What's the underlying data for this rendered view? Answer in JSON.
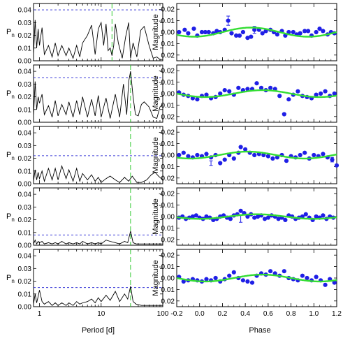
{
  "chart_data": [
    {
      "type": "line",
      "panel": "periodogram",
      "xlabel": "Period [d]",
      "ylabel": "P",
      "ylabel_sub": "n",
      "xscale": "log",
      "xlim": [
        0.8,
        100
      ],
      "ylim": [
        0,
        0.045
      ],
      "xticks": [
        "1",
        "10",
        "100"
      ],
      "yticks": [
        "0.00",
        "0.01",
        "0.02",
        "0.03",
        "0.04"
      ],
      "rows": [
        {
          "threshold": 0.04,
          "peak_period": 15,
          "series": [
            {
              "x": [
                0.8,
                0.85,
                0.9,
                0.95,
                1,
                1.1,
                1.2,
                1.4,
                1.6,
                1.8,
                2,
                2.3,
                2.7,
                3,
                3.5,
                4,
                4.5,
                5,
                6,
                7,
                8,
                9,
                10,
                11,
                12,
                13,
                14,
                15,
                16,
                17,
                19,
                22,
                25,
                28,
                30,
                33,
                38,
                44,
                50,
                60,
                70,
                80,
                90,
                100
              ],
              "y": [
                0.005,
                0.032,
                0.01,
                0.025,
                0.012,
                0.026,
                0.005,
                0.012,
                0.003,
                0.014,
                0.004,
                0.012,
                0.004,
                0.01,
                0.002,
                0.012,
                0.003,
                0.014,
                0.02,
                0.028,
                0.005,
                0.025,
                0.03,
                0.012,
                0.029,
                0.008,
                0.01,
                0.004,
                0.012,
                0.029,
                0.014,
                0.002,
                0.019,
                0.03,
                0.002,
                0.014,
                0.003,
                0.024,
                0.027,
                0.012,
                0.002,
                0.003,
                0.001,
                0.001
              ]
            }
          ]
        },
        {
          "threshold": 0.035,
          "peak_period": 30,
          "series": [
            {
              "x": [
                0.8,
                0.85,
                0.9,
                0.95,
                1,
                1.1,
                1.2,
                1.4,
                1.6,
                1.8,
                2,
                2.3,
                2.7,
                3,
                3.5,
                4,
                4.5,
                5,
                6,
                7,
                8,
                9,
                10,
                12,
                14,
                17,
                20,
                23,
                26,
                28,
                30,
                33,
                36,
                40,
                45,
                50,
                60,
                70,
                80,
                90,
                100
              ],
              "y": [
                0.005,
                0.032,
                0.01,
                0.02,
                0.015,
                0.022,
                0.006,
                0.013,
                0.004,
                0.017,
                0.005,
                0.014,
                0.006,
                0.016,
                0.004,
                0.017,
                0.006,
                0.02,
                0.004,
                0.018,
                0.005,
                0.021,
                0.004,
                0.019,
                0.003,
                0.022,
                0.004,
                0.03,
                0.006,
                0.032,
                0.04,
                0.02,
                0.006,
                0.005,
                0.014,
                0.016,
                0.012,
                0.004,
                0.003,
                0.012,
                0.014
              ]
            }
          ]
        },
        {
          "threshold": 0.022,
          "peak_period": 30,
          "series": [
            {
              "x": [
                0.8,
                0.85,
                0.9,
                0.95,
                1,
                1.1,
                1.2,
                1.4,
                1.6,
                1.8,
                2,
                2.3,
                2.7,
                3,
                3.5,
                4,
                4.5,
                5,
                6,
                7,
                8,
                9,
                10,
                12,
                14,
                17,
                20,
                24,
                28,
                32,
                38,
                45,
                55,
                65,
                75,
                85,
                100
              ],
              "y": [
                0.002,
                0.011,
                0.003,
                0.009,
                0.004,
                0.01,
                0.002,
                0.012,
                0.003,
                0.012,
                0.003,
                0.014,
                0.004,
                0.011,
                0.002,
                0.012,
                0.002,
                0.008,
                0.003,
                0.007,
                0.002,
                0.005,
                0.001,
                0.004,
                0.006,
                0.003,
                0.001,
                0.005,
                0.002,
                0.006,
                0.001,
                0.001,
                0.003,
                0.007,
                0.009,
                0.006,
                0.003
              ]
            }
          ]
        },
        {
          "threshold": 0.008,
          "peak_period": 30,
          "series": [
            {
              "x": [
                0.8,
                0.85,
                0.9,
                0.95,
                1,
                1.1,
                1.2,
                1.4,
                1.6,
                1.8,
                2,
                2.3,
                2.7,
                3,
                3.5,
                4,
                4.5,
                5,
                6,
                7,
                8,
                9,
                10,
                12,
                14,
                17,
                20,
                24,
                27,
                30,
                33,
                37,
                45,
                55,
                70,
                85,
                100
              ],
              "y": [
                0.001,
                0.004,
                0.001,
                0.003,
                0.002,
                0.003,
                0.001,
                0.002,
                0.001,
                0.002,
                0.001,
                0.003,
                0.001,
                0.002,
                0.001,
                0.002,
                0.001,
                0.003,
                0.001,
                0.002,
                0.001,
                0.002,
                0.001,
                0.004,
                0.003,
                0.002,
                0.001,
                0.003,
                0.002,
                0.011,
                0.002,
                0.001,
                0.001,
                0.001,
                0.001,
                0.001,
                0.001
              ]
            }
          ]
        },
        {
          "threshold": 0.015,
          "peak_period": 30,
          "series": [
            {
              "x": [
                0.8,
                0.85,
                0.9,
                0.95,
                1,
                1.1,
                1.2,
                1.4,
                1.6,
                1.8,
                2,
                2.3,
                2.7,
                3,
                3.5,
                4,
                4.5,
                5,
                6,
                7,
                8,
                9,
                10,
                12,
                14,
                17,
                20,
                24,
                27,
                30,
                33,
                37,
                45,
                55,
                70,
                85,
                100
              ],
              "y": [
                0.002,
                0.01,
                0.003,
                0.008,
                0.013,
                0.004,
                0.002,
                0.004,
                0.001,
                0.003,
                0.001,
                0.003,
                0.001,
                0.003,
                0.001,
                0.004,
                0.002,
                0.003,
                0.004,
                0.006,
                0.003,
                0.007,
                0.004,
                0.009,
                0.005,
                0.012,
                0.004,
                0.01,
                0.006,
                0.016,
                0.004,
                0.002,
                0.001,
                0.001,
                0.001,
                0.001,
                0.001
              ]
            }
          ]
        }
      ]
    },
    {
      "type": "scatter",
      "panel": "phase",
      "xlabel": "Phase",
      "ylabel": "Magnitude",
      "xlim": [
        -0.2,
        1.2
      ],
      "ylim": [
        0.025,
        -0.025
      ],
      "xticks": [
        "-0.2",
        "0.0",
        "0.2",
        "0.4",
        "0.6",
        "0.8",
        "1.0",
        "1.2"
      ],
      "yticks": [
        "-0.02",
        "-0.01",
        "0.00",
        "0.01",
        "0.02"
      ],
      "rows": [
        {
          "amp": 0.004,
          "t0": 0.45,
          "points": {
            "x": [
              -0.18,
              -0.13,
              -0.1,
              -0.05,
              -0.02,
              0.02,
              0.05,
              0.08,
              0.12,
              0.15,
              0.18,
              0.22,
              0.25,
              0.28,
              0.32,
              0.35,
              0.38,
              0.42,
              0.45,
              0.48,
              0.52,
              0.55,
              0.58,
              0.62,
              0.65,
              0.68,
              0.72,
              0.75,
              0.78,
              0.82,
              0.85,
              0.88,
              0.92,
              0.95,
              0.98,
              1.02,
              1.05,
              1.08,
              1.12,
              1.15,
              1.18
            ],
            "y": [
              0.0,
              -0.002,
              0.001,
              -0.003,
              0.003,
              0.0,
              0.0,
              0.0,
              0.001,
              -0.001,
              0.0,
              -0.002,
              -0.01,
              0.001,
              0.003,
              0.003,
              0.0,
              0.005,
              0.004,
              -0.002,
              -0.002,
              0.001,
              -0.001,
              -0.002,
              0.0,
              0.002,
              -0.001,
              0.003,
              0.0,
              0.0,
              0.002,
              0.001,
              -0.001,
              -0.001,
              0.003,
              0.0,
              -0.003,
              -0.001,
              0.002,
              0.0,
              0.001
            ]
          },
          "error_bars": [
            {
              "x": 0.25,
              "y": -0.01,
              "err": 0.004
            },
            {
              "x": 0.48,
              "y": -0.002,
              "err": 0.003
            }
          ]
        },
        {
          "amp": 0.003,
          "t0": 0.55,
          "points": {
            "x": [
              -0.18,
              -0.14,
              -0.1,
              -0.06,
              -0.02,
              0.02,
              0.06,
              0.1,
              0.14,
              0.18,
              0.22,
              0.26,
              0.3,
              0.34,
              0.38,
              0.42,
              0.46,
              0.5,
              0.54,
              0.58,
              0.62,
              0.66,
              0.7,
              0.74,
              0.78,
              0.82,
              0.86,
              0.9,
              0.94,
              0.98,
              1.02,
              1.06,
              1.1,
              1.14,
              1.18
            ],
            "y": [
              -0.001,
              0.001,
              0.002,
              0.004,
              0.005,
              0.002,
              0.001,
              0.004,
              0.003,
              0.0,
              -0.003,
              -0.002,
              0.001,
              -0.005,
              -0.003,
              -0.004,
              -0.004,
              -0.009,
              -0.005,
              -0.003,
              -0.005,
              -0.004,
              0.002,
              0.018,
              0.005,
              0.001,
              -0.002,
              0.002,
              0.003,
              0.004,
              0.001,
              0.0,
              -0.002,
              0.002,
              0.0
            ]
          }
        },
        {
          "amp": 0.003,
          "t0": 0.42,
          "points": {
            "x": [
              -0.18,
              -0.14,
              -0.1,
              -0.06,
              -0.02,
              0.02,
              0.06,
              0.1,
              0.14,
              0.18,
              0.22,
              0.26,
              0.3,
              0.34,
              0.36,
              0.4,
              0.44,
              0.48,
              0.52,
              0.56,
              0.6,
              0.64,
              0.68,
              0.72,
              0.76,
              0.8,
              0.84,
              0.88,
              0.92,
              0.96,
              1.0,
              1.04,
              1.08,
              1.12,
              1.16,
              1.2
            ],
            "y": [
              0.0,
              -0.002,
              0.001,
              0.002,
              0.0,
              0.001,
              -0.001,
              0.002,
              0.0,
              0.007,
              0.004,
              0.0,
              0.003,
              -0.002,
              -0.007,
              -0.005,
              -0.002,
              0.0,
              -0.001,
              0.0,
              0.001,
              0.003,
              0.002,
              0.0,
              0.005,
              0.001,
              0.002,
              0.0,
              -0.002,
              0.003,
              0.0,
              0.001,
              -0.001,
              0.002,
              0.004,
              0.009
            ]
          },
          "error_bars": [
            {
              "x": 0.1,
              "y": 0.007,
              "err": 0.002
            },
            {
              "x": 1.16,
              "y": 0.004,
              "err": 0.002
            }
          ]
        },
        {
          "amp": 0.002,
          "t0": 0.5,
          "points": {
            "x": [
              -0.18,
              -0.15,
              -0.12,
              -0.09,
              -0.06,
              -0.03,
              0.0,
              0.03,
              0.06,
              0.09,
              0.12,
              0.15,
              0.18,
              0.21,
              0.24,
              0.27,
              0.3,
              0.33,
              0.36,
              0.39,
              0.42,
              0.45,
              0.48,
              0.51,
              0.54,
              0.57,
              0.6,
              0.63,
              0.66,
              0.69,
              0.72,
              0.75,
              0.78,
              0.81,
              0.84,
              0.87,
              0.9,
              0.93,
              0.96,
              0.99,
              1.02,
              1.05,
              1.08,
              1.11,
              1.14,
              1.17
            ],
            "y": [
              0.001,
              0.0,
              0.002,
              0.001,
              0.0,
              -0.001,
              0.001,
              0.002,
              0.0,
              0.001,
              0.003,
              0.002,
              0.0,
              -0.001,
              0.001,
              0.002,
              -0.001,
              -0.002,
              -0.005,
              -0.003,
              0.0,
              -0.002,
              0.001,
              0.0,
              -0.001,
              0.002,
              0.001,
              -0.001,
              0.0,
              0.002,
              0.001,
              0.003,
              -0.001,
              0.0,
              0.002,
              0.001,
              0.0,
              -0.002,
              0.001,
              0.003,
              0.0,
              0.001,
              -0.001,
              0.002,
              0.0,
              0.001
            ]
          },
          "error_bars": [
            {
              "x": 0.36,
              "y": 0.002,
              "err": 0.003
            }
          ]
        },
        {
          "amp": 0.003,
          "t0": 0.55,
          "points": {
            "x": [
              -0.18,
              -0.14,
              -0.1,
              -0.06,
              -0.02,
              0.02,
              0.06,
              0.1,
              0.14,
              0.18,
              0.22,
              0.26,
              0.3,
              0.34,
              0.38,
              0.42,
              0.46,
              0.5,
              0.54,
              0.58,
              0.62,
              0.66,
              0.7,
              0.74,
              0.78,
              0.82,
              0.86,
              0.9,
              0.94,
              0.98,
              1.02,
              1.06,
              1.1,
              1.14,
              1.18
            ],
            "y": [
              -0.001,
              0.003,
              0.002,
              0.001,
              0.002,
              0.003,
              0.001,
              0.002,
              0.0,
              0.003,
              0.001,
              -0.002,
              -0.005,
              0.0,
              0.002,
              0.003,
              0.004,
              -0.002,
              -0.004,
              -0.003,
              -0.006,
              -0.004,
              -0.002,
              -0.006,
              0.0,
              0.001,
              0.002,
              -0.002,
              0.0,
              0.002,
              -0.001,
              0.002,
              0.006,
              0.001,
              0.004
            ]
          }
        }
      ]
    }
  ]
}
